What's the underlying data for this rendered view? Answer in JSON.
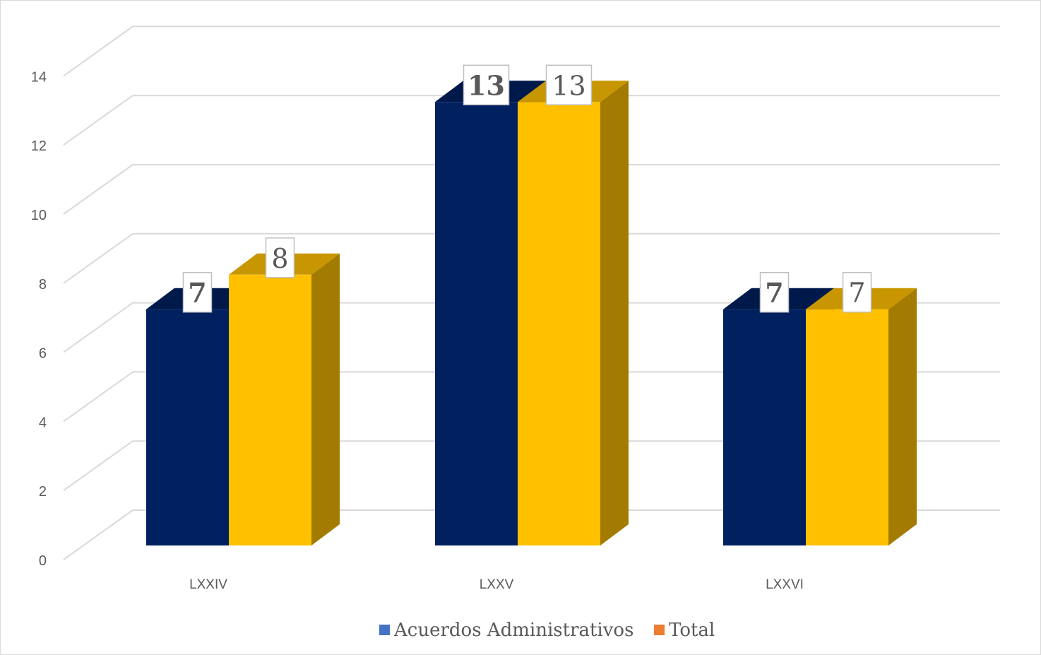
{
  "chart_data": {
    "type": "bar",
    "style": "3d-clustered-column",
    "categories": [
      "LXXIV",
      "LXXV",
      "LXXVI"
    ],
    "series": [
      {
        "name": "Acuerdos Administrativos",
        "values": [
          7,
          13,
          7
        ],
        "color": "#002060",
        "legend_color": "#4472C4"
      },
      {
        "name": "Total",
        "values": [
          8,
          13,
          7
        ],
        "color": "#FFC000",
        "legend_color": "#ED7D31"
      }
    ],
    "ylim": [
      0,
      14
    ],
    "yticks": [
      "0",
      "2",
      "4",
      "6",
      "8",
      "10",
      "12",
      "14"
    ],
    "grid": true,
    "legend": "bottom",
    "data_labels": [
      [
        "7",
        "13",
        "7"
      ],
      [
        "8",
        "13",
        "7"
      ]
    ]
  }
}
